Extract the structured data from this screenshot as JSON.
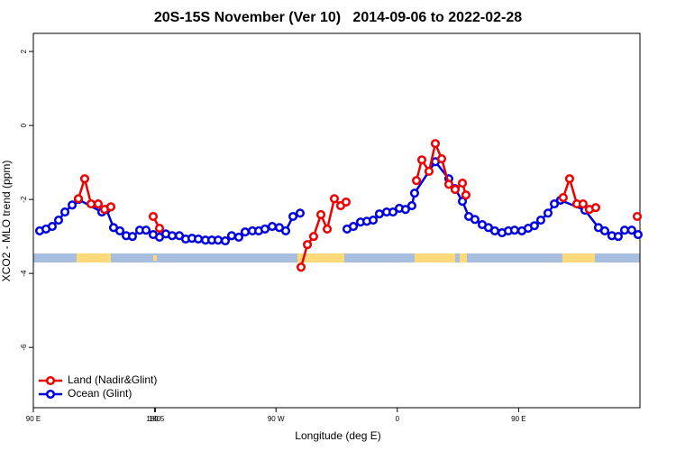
{
  "chart_data": {
    "type": "line",
    "title": "20S-15S November (Ver 10)   2014-09-06 to 2022-02-28",
    "x_label": "Longitude (deg E)",
    "y_label": "XCO2 - MLO trend (ppm)",
    "xlim": [
      90,
      540
    ],
    "xticks": [
      {
        "value": 90,
        "label": "90 E"
      },
      180,
      {
        "value": 270,
        "label": "90 W"
      },
      {
        "value": 360,
        "label": "0"
      },
      {
        "value": 450,
        "label": "90 E"
      },
      180.5
    ],
    "ylim": [
      -7.63,
      2.49
    ],
    "yticks": [
      2,
      0,
      -2,
      -4,
      -6
    ],
    "legend": "bottom-left",
    "series": [
      {
        "name": "Land (Nadir&Glint)",
        "color": "#ee0000",
        "x": [
          123.4,
          128.1,
          132.8,
          138.1,
          142.8,
          147.5,
          null,
          178.9,
          183.6,
          null,
          288.6,
          293.3,
          297.9,
          303.3,
          308.0,
          313.3,
          318.0,
          322.0,
          null,
          374.2,
          378.2,
          383.5,
          388.2,
          392.9,
          398.2,
          402.9,
          408.3,
          410.9,
          null,
          483.1,
          487.8,
          493.2,
          497.8,
          502.5,
          507.2,
          null,
          538.0
        ],
        "values": [
          -1.98,
          -1.44,
          -2.12,
          -2.12,
          -2.27,
          -2.2,
          null,
          -2.46,
          -2.78,
          null,
          -3.83,
          -3.22,
          -3.0,
          -2.41,
          -2.8,
          -1.98,
          -2.17,
          -2.07,
          null,
          -1.49,
          -0.93,
          -1.24,
          -0.49,
          -0.9,
          -1.59,
          -1.73,
          -1.56,
          -1.88,
          null,
          -1.95,
          -1.44,
          -2.12,
          -2.12,
          -2.27,
          -2.22,
          null,
          -2.46
        ]
      },
      {
        "name": "Ocean (Glint)",
        "color": "#0000dd",
        "x": [
          94.7,
          99.4,
          104.0,
          108.7,
          113.4,
          118.8,
          123.4,
          140.8,
          144.2,
          149.5,
          154.2,
          158.9,
          163.5,
          168.9,
          173.6,
          178.9,
          183.6,
          188.3,
          193.0,
          198.3,
          203.0,
          207.7,
          212.4,
          217.7,
          222.4,
          227.1,
          232.4,
          237.1,
          242.4,
          247.1,
          252.5,
          257.2,
          261.8,
          267.2,
          272.5,
          277.2,
          282.6,
          287.9,
          null,
          322.7,
          327.4,
          332.7,
          337.4,
          342.1,
          346.7,
          352.1,
          356.8,
          361.5,
          366.1,
          370.8,
          372.8,
          388.2,
          398.2,
          402.9,
          408.3,
          413.0,
          417.6,
          423.0,
          427.6,
          432.3,
          437.7,
          442.4,
          447.0,
          452.4,
          457.1,
          461.7,
          466.4,
          471.8,
          476.5,
          481.1,
          499.2,
          509.2,
          513.9,
          519.2,
          523.9,
          528.6,
          533.9,
          538.6
        ],
        "values": [
          -2.85,
          -2.8,
          -2.73,
          -2.56,
          -2.34,
          -2.15,
          -2.0,
          -2.34,
          -2.27,
          -2.76,
          -2.85,
          -2.98,
          -3.0,
          -2.83,
          -2.83,
          -2.95,
          -3.02,
          -2.93,
          -2.98,
          -2.98,
          -3.07,
          -3.05,
          -3.07,
          -3.1,
          -3.1,
          -3.1,
          -3.12,
          -2.98,
          -3.02,
          -2.88,
          -2.85,
          -2.85,
          -2.8,
          -2.73,
          -2.76,
          -2.85,
          -2.46,
          -2.37,
          null,
          -2.8,
          -2.73,
          -2.61,
          -2.59,
          -2.56,
          -2.39,
          -2.34,
          -2.34,
          -2.24,
          -2.27,
          -2.17,
          -1.83,
          -0.98,
          -1.44,
          -1.71,
          -2.05,
          -2.46,
          -2.54,
          -2.68,
          -2.76,
          -2.85,
          -2.9,
          -2.85,
          -2.83,
          -2.85,
          -2.78,
          -2.71,
          -2.56,
          -2.37,
          -2.12,
          -2.02,
          -2.29,
          -2.76,
          -2.85,
          -2.98,
          -3.0,
          -2.83,
          -2.83,
          -2.95
        ]
      }
    ]
  }
}
